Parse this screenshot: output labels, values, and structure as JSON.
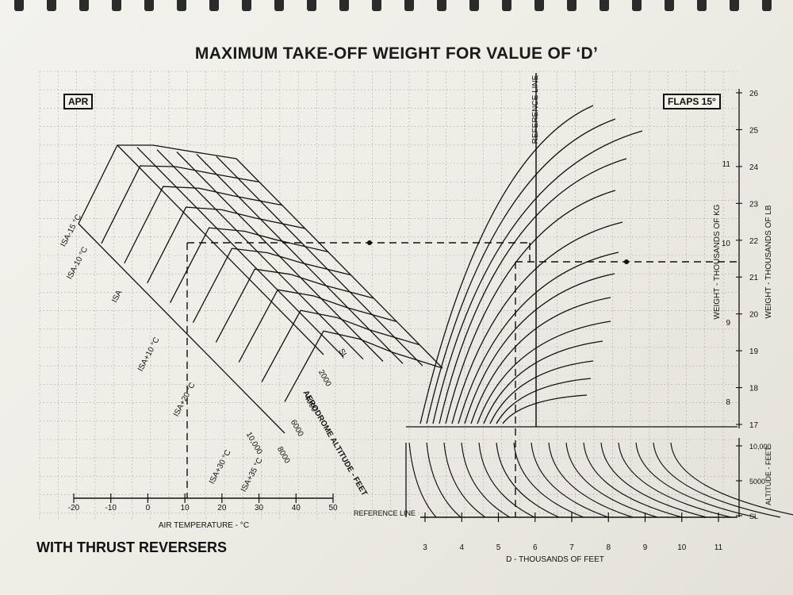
{
  "title": "MAXIMUM TAKE-OFF WEIGHT FOR VALUE OF ‘D’",
  "footer": "WITH THRUST REVERSERS",
  "apr_label": "APR",
  "flaps_label": "FLAPS 15°",
  "colors": {
    "ink": "#111111",
    "grid": "#9a9a9a",
    "paper": "#f2f1ea"
  },
  "chart_data": [
    {
      "type": "line",
      "name_ref": "temperature-panel",
      "xlabel": "AIR TEMPERATURE - °C",
      "x_ticks": [
        "-20",
        "-10",
        "0",
        "10",
        "20",
        "30",
        "40",
        "50"
      ],
      "xlim": [
        -20,
        50
      ],
      "isa_labels": [
        "ISA-15 °C",
        "ISA-10 °C",
        "ISA",
        "ISA+10 °C",
        "ISA+20 °C",
        "ISA+30 °C",
        "ISA+35 °C"
      ],
      "altitude_labels": [
        "SL",
        "2000",
        "4000",
        "6000",
        "8000",
        "10,000"
      ],
      "altitude_axis_label": "AERODROME ALTITUDE - FEET"
    },
    {
      "type": "line",
      "name_ref": "d-panel",
      "xlabel": "D - THOUSANDS OF FEET",
      "x_ticks": [
        "3",
        "4",
        "5",
        "6",
        "7",
        "8",
        "9",
        "10",
        "11"
      ],
      "xlim": [
        3,
        11
      ],
      "reference_line_label": "REFERENCE LINE",
      "lower_reference_label": "REFERENCE LINE",
      "altitude_ticks": [
        "10,000",
        "5000",
        "SL"
      ],
      "altitude_axis_label": "ALTITUDE - FEET",
      "weight_kg_label": "WEIGHT - THOUSANDS OF KG",
      "weight_kg_ticks": [
        "8",
        "9",
        "10",
        "11"
      ],
      "weight_lb_label": "WEIGHT - THOUSANDS OF LB",
      "weight_lb_ticks": [
        "17",
        "18",
        "19",
        "20",
        "21",
        "22",
        "23",
        "24",
        "25",
        "26"
      ],
      "example_d": 6.0,
      "example_weight_lb": 21.3
    }
  ]
}
